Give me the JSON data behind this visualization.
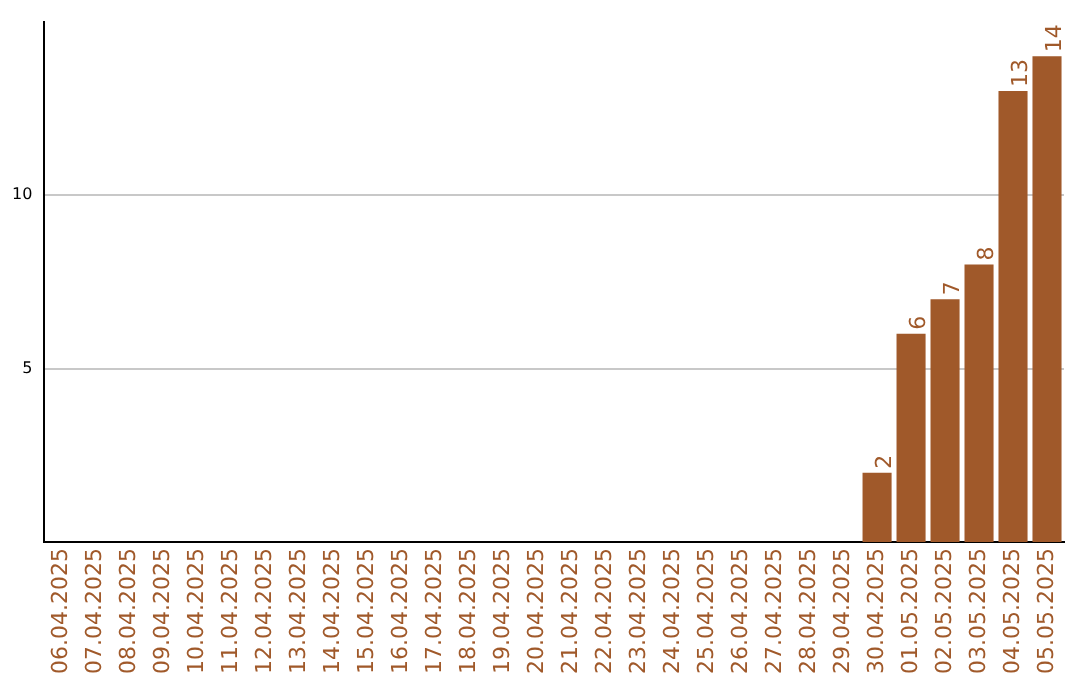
{
  "chart_data": {
    "type": "bar",
    "categories": [
      "06.04.2025",
      "07.04.2025",
      "08.04.2025",
      "09.04.2025",
      "10.04.2025",
      "11.04.2025",
      "12.04.2025",
      "13.04.2025",
      "14.04.2025",
      "15.04.2025",
      "16.04.2025",
      "17.04.2025",
      "18.04.2025",
      "19.04.2025",
      "20.04.2025",
      "21.04.2025",
      "22.04.2025",
      "23.04.2025",
      "24.04.2025",
      "25.04.2025",
      "26.04.2025",
      "27.04.2025",
      "28.04.2025",
      "29.04.2025",
      "30.04.2025",
      "01.05.2025",
      "02.05.2025",
      "03.05.2025",
      "04.05.2025",
      "05.05.2025"
    ],
    "values": [
      0,
      0,
      0,
      0,
      0,
      0,
      0,
      0,
      0,
      0,
      0,
      0,
      0,
      0,
      0,
      0,
      0,
      0,
      0,
      0,
      0,
      0,
      0,
      0,
      2,
      6,
      7,
      8,
      13,
      14
    ],
    "value_labels": [
      null,
      null,
      null,
      null,
      null,
      null,
      null,
      null,
      null,
      null,
      null,
      null,
      null,
      null,
      null,
      null,
      null,
      null,
      null,
      null,
      null,
      null,
      null,
      null,
      "2",
      "6",
      "7",
      "8",
      "13",
      "14"
    ],
    "color": "#a0592a",
    "ylim": [
      0,
      15
    ],
    "yticks": [
      5,
      10
    ],
    "grid": "y",
    "legend": false
  }
}
